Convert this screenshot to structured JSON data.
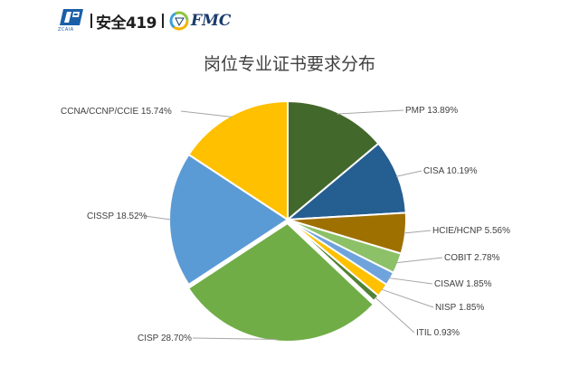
{
  "header": {
    "logo_left_text": "ZCAIA",
    "brand_text": "安全419",
    "partner_text": "FMC",
    "separator": "|"
  },
  "chart_data": {
    "type": "pie",
    "title": "岗位专业证书要求分布",
    "start_angle_deg": 0,
    "direction": "clockwise",
    "categories": [
      "PMP",
      "CISA",
      "HCIE/HCNP",
      "COBIT",
      "CISAW",
      "NISP",
      "ITIL",
      "CISP",
      "CISSP",
      "CCNA/CCNP/CCIE"
    ],
    "values": [
      13.89,
      10.19,
      5.56,
      2.78,
      1.85,
      1.85,
      0.93,
      28.7,
      18.52,
      15.74
    ],
    "labels": [
      "PMP 13.89%",
      "CISA 10.19%",
      "HCIE/HCNP 5.56%",
      "COBIT 2.78%",
      "CISAW 1.85%",
      "NISP 1.85%",
      "ITIL 0.93%",
      "CISP 28.70%",
      "CISSP 18.52%",
      "CCNA/CCNP/CCIE 15.74%"
    ],
    "colors": [
      "#43682b",
      "#255e91",
      "#9e7000",
      "#8cc168",
      "#6fa3dc",
      "#ffc000",
      "#548235",
      "#70ad47",
      "#5b9bd5",
      "#ffc000"
    ],
    "unit": "%",
    "legend": "none",
    "data_labels": "outside with leader lines"
  }
}
